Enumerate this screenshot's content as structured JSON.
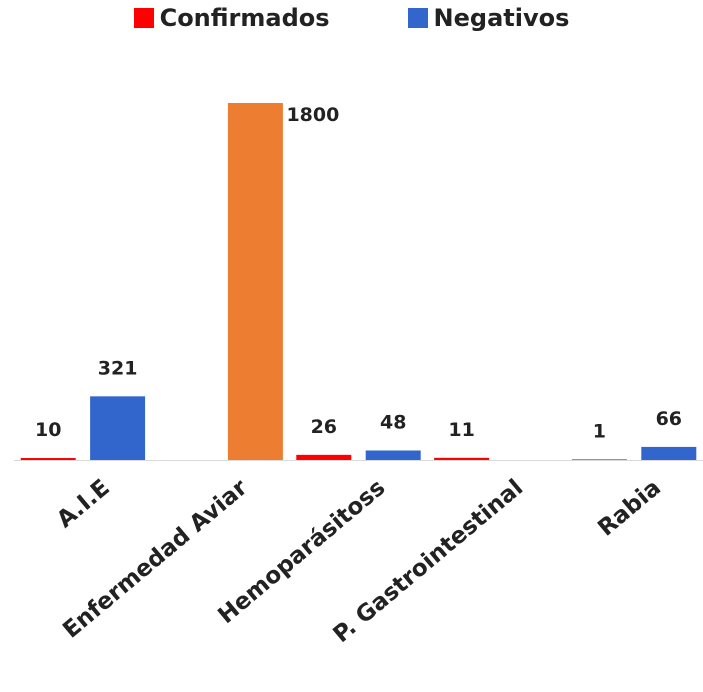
{
  "chart_data": {
    "type": "bar",
    "title": "",
    "xlabel": "",
    "ylabel": "",
    "categories": [
      "A.I.E",
      "Enfermedad Aviar",
      "Hemoparásitoss",
      "P. Gastrointestinal",
      "Rabia"
    ],
    "series": [
      {
        "name": "Confirmados",
        "color": "#ff0000",
        "values": [
          10,
          null,
          26,
          11,
          1
        ]
      },
      {
        "name": "Negativos",
        "color": "#3366cc",
        "values": [
          321,
          1800,
          48,
          null,
          66
        ]
      }
    ],
    "highlight": {
      "category": "Enfermedad Aviar",
      "series": "Negativos",
      "color": "#ed7d31"
    },
    "data_labels": true,
    "ylim": [
      0,
      1800
    ],
    "legend_position": "top",
    "grid": false
  }
}
